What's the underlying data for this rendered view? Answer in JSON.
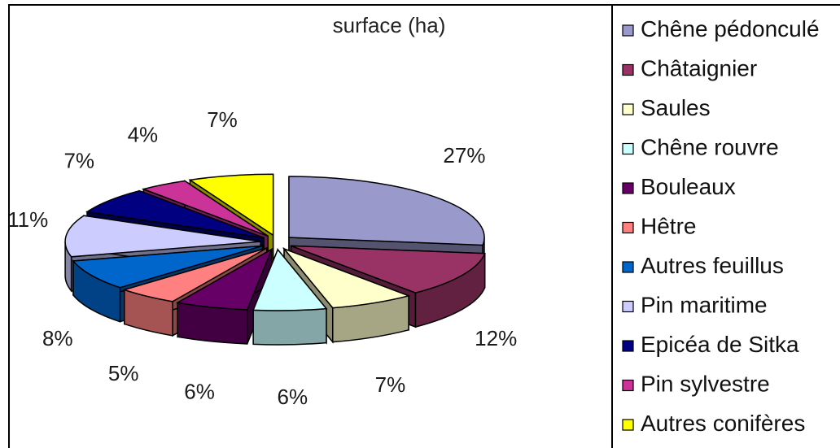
{
  "chart_data": {
    "type": "pie",
    "title": "surface (ha)",
    "slices": [
      {
        "label": "Chêne pédonculé",
        "pct_label": "27%",
        "value": 27,
        "color": "#9999cc"
      },
      {
        "label": "Châtaignier",
        "pct_label": "12%",
        "value": 12,
        "color": "#993366"
      },
      {
        "label": "Saules",
        "pct_label": "7%",
        "value": 7,
        "color": "#ffffcc"
      },
      {
        "label": "Chêne rouvre",
        "pct_label": "6%",
        "value": 6,
        "color": "#ccffff"
      },
      {
        "label": "Bouleaux",
        "pct_label": "6%",
        "value": 6,
        "color": "#660066"
      },
      {
        "label": "Hêtre",
        "pct_label": "5%",
        "value": 5,
        "color": "#ff8080"
      },
      {
        "label": "Autres feuillus",
        "pct_label": "8%",
        "value": 8,
        "color": "#0066cc"
      },
      {
        "label": "Pin maritime",
        "pct_label": "11%",
        "value": 11,
        "color": "#ccccff"
      },
      {
        "label": "Epicéa de Sitka",
        "pct_label": "7%",
        "value": 7,
        "color": "#000080"
      },
      {
        "label": "Pin sylvestre",
        "pct_label": "4%",
        "value": 4,
        "color": "#cc3399"
      },
      {
        "label": "Autres conifères",
        "pct_label": "7%",
        "value": 7,
        "color": "#ffff00"
      }
    ],
    "legend_position": "right",
    "exploded": true,
    "three_d": true
  }
}
